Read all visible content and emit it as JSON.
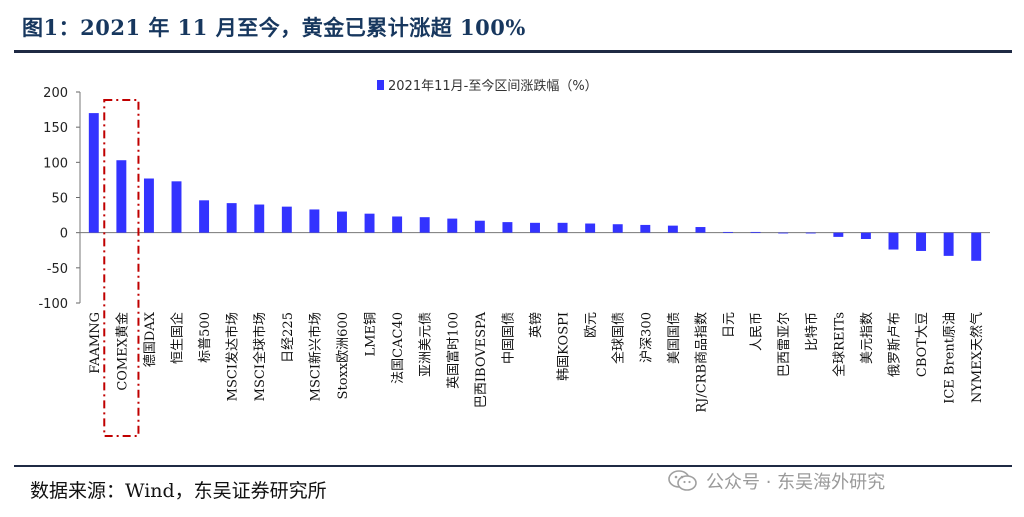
{
  "header": {
    "title": "图1：2021 年 11 月至今，黄金已累计涨超 100%"
  },
  "footer": {
    "source": "数据来源：Wind，东吴证券研究所",
    "watermark": "公众号 · 东吴海外研究"
  },
  "colors": {
    "bar": "#3333ff",
    "highlight": "#c00000",
    "title": "#17375e"
  },
  "chart_data": {
    "type": "bar",
    "legend": "2021年11月-至今区间涨跌幅（%）",
    "legend_position": "top-center",
    "ylim": [
      -100,
      200
    ],
    "yticks": [
      200,
      150,
      100,
      50,
      0,
      -50,
      -100
    ],
    "ytick_labels": [
      "200",
      "150",
      "100",
      "50",
      "0",
      "-50",
      "-100"
    ],
    "highlighted_category": "COMEX黄金",
    "categories": [
      "FAAMNG",
      "COMEX黄金",
      "德国DAX",
      "恒生国企",
      "标普500",
      "MSCI发达市场",
      "MSCI全球市场",
      "日经225",
      "MSCI新兴市场",
      "Stoxx欧洲600",
      "LME铜",
      "法国CAC40",
      "亚洲美元债",
      "英国富时100",
      "巴西IBOVESPA",
      "中国国债",
      "英镑",
      "韩国KOSPI",
      "欧元",
      "全球国债",
      "沪深300",
      "美国国债",
      "RJ/CRB商品指数",
      "日元",
      "人民币",
      "巴西雷亚尔",
      "比特币",
      "全球REITs",
      "美元指数",
      "俄罗斯卢布",
      "CBOT大豆",
      "ICE Brent原油",
      "NYMEX天然气"
    ],
    "values": [
      170,
      103,
      77,
      73,
      46,
      42,
      40,
      37,
      33,
      30,
      27,
      23,
      22,
      20,
      17,
      15,
      14,
      14,
      13,
      12,
      11,
      10,
      8,
      1,
      1,
      0,
      0,
      -6,
      -9,
      -24,
      -26,
      -33,
      -40
    ]
  }
}
